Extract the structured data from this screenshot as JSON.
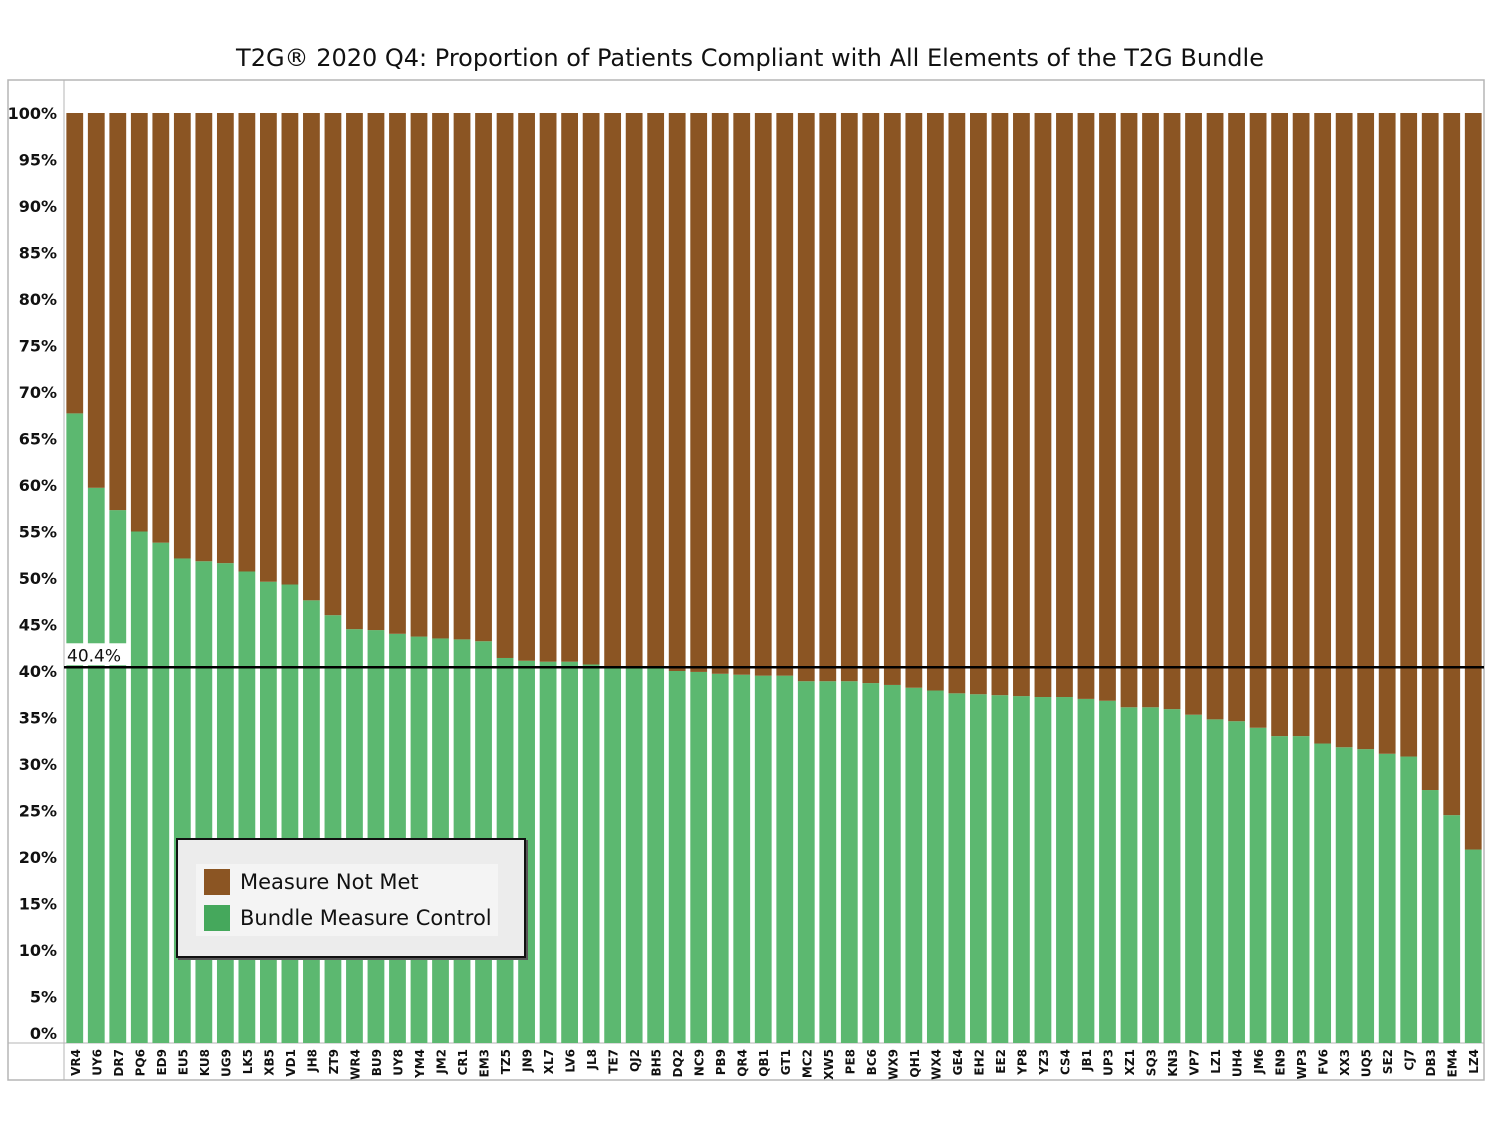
{
  "chart_data": {
    "type": "bar",
    "stacked": true,
    "title": "T2G® 2020 Q4: Proportion of Patients Compliant with All Elements of the T2G Bundle",
    "xlabel": "",
    "ylabel": "",
    "ylim": [
      0,
      100
    ],
    "y_ticks": [
      "0%",
      "5%",
      "10%",
      "15%",
      "20%",
      "25%",
      "30%",
      "35%",
      "40%",
      "45%",
      "50%",
      "55%",
      "60%",
      "65%",
      "70%",
      "75%",
      "80%",
      "85%",
      "90%",
      "95%",
      "100%"
    ],
    "categories": [
      "VR4",
      "UY6",
      "DR7",
      "PQ6",
      "ED9",
      "EU5",
      "KU8",
      "UG9",
      "LK5",
      "XB5",
      "VD1",
      "JH8",
      "ZT9",
      "WR4",
      "BU9",
      "UY8",
      "YM4",
      "JM2",
      "CR1",
      "EM3",
      "TZ5",
      "JN9",
      "XL7",
      "LV6",
      "JL8",
      "TE7",
      "QJ2",
      "BH5",
      "DQ2",
      "NC9",
      "PB9",
      "QR4",
      "QB1",
      "GT1",
      "MC2",
      "XW5",
      "PE8",
      "BC6",
      "WX9",
      "QH1",
      "WX4",
      "GE4",
      "EH2",
      "EE2",
      "YP8",
      "YZ3",
      "CS4",
      "JB1",
      "UP3",
      "XZ1",
      "SQ3",
      "KN3",
      "VP7",
      "LZ1",
      "UH4",
      "JM6",
      "EN9",
      "WP3",
      "FV6",
      "XX3",
      "UQ5",
      "SE2",
      "CJ7",
      "DB3",
      "EM4",
      "LZ4"
    ],
    "series": [
      {
        "name": "Bundle Measure Control",
        "color": "#5cb870",
        "values": [
          67.7,
          59.7,
          57.3,
          55.0,
          53.8,
          52.1,
          51.8,
          51.6,
          50.7,
          49.6,
          49.3,
          47.6,
          46.0,
          44.5,
          44.4,
          44.0,
          43.7,
          43.5,
          43.4,
          43.2,
          41.4,
          41.1,
          41.0,
          41.0,
          40.7,
          40.5,
          40.5,
          40.4,
          40.0,
          39.9,
          39.7,
          39.6,
          39.5,
          39.5,
          38.9,
          38.9,
          38.9,
          38.7,
          38.5,
          38.2,
          37.9,
          37.6,
          37.5,
          37.4,
          37.3,
          37.2,
          37.2,
          37.0,
          36.8,
          36.1,
          36.1,
          35.9,
          35.3,
          34.8,
          34.6,
          33.9,
          33.0,
          33.0,
          32.2,
          31.8,
          31.6,
          31.1,
          30.8,
          27.2,
          24.5,
          20.8
        ]
      },
      {
        "name": "Measure Not Met",
        "color": "#8b5523",
        "values": [
          32.3,
          40.3,
          42.7,
          45.0,
          46.2,
          47.9,
          48.2,
          48.4,
          49.3,
          50.4,
          50.7,
          52.4,
          54.0,
          55.5,
          55.6,
          56.0,
          56.3,
          56.5,
          56.6,
          56.8,
          58.6,
          58.9,
          59.0,
          59.0,
          59.3,
          59.5,
          59.5,
          59.6,
          60.0,
          60.1,
          60.3,
          60.4,
          60.5,
          60.5,
          61.1,
          61.1,
          61.1,
          61.3,
          61.5,
          61.8,
          62.1,
          62.4,
          62.5,
          62.6,
          62.7,
          62.8,
          62.8,
          63.0,
          63.2,
          63.9,
          63.9,
          64.1,
          64.7,
          65.2,
          65.4,
          66.1,
          67.0,
          67.0,
          67.8,
          68.2,
          68.4,
          68.9,
          69.2,
          72.8,
          75.5,
          79.2
        ]
      }
    ],
    "reference_line": {
      "value": 40.4,
      "label": "40.4%",
      "color": "#000000"
    },
    "grid": false,
    "legend": {
      "placement": "bottom-left",
      "entries": [
        {
          "label": "Measure Not Met",
          "color": "#8b5523"
        },
        {
          "label": "Bundle Measure Control",
          "color": "#45a85c"
        }
      ]
    }
  }
}
